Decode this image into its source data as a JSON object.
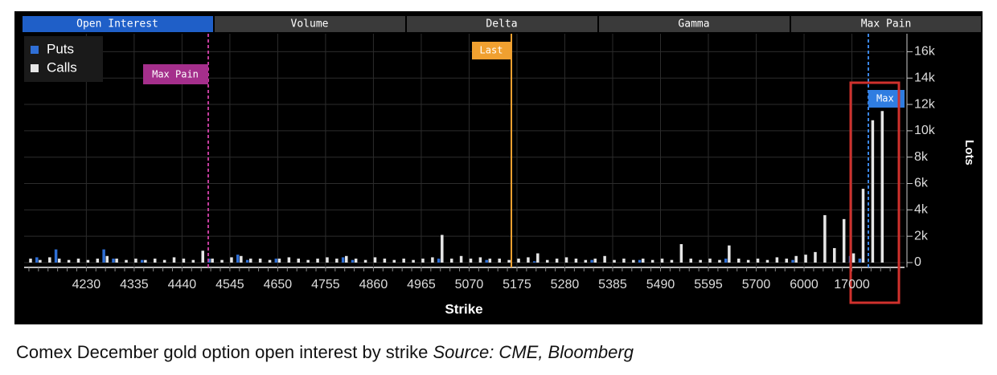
{
  "tabs": [
    "Open Interest",
    "Volume",
    "Delta",
    "Gamma",
    "Max Pain"
  ],
  "caption": "Comex December gold option open interest by strike",
  "source": "Source: CME, Bloomberg",
  "chart_data": {
    "type": "bar",
    "x_label": "Strike",
    "y_label": "Lots",
    "annotations": [
      "Max Pain",
      "Last",
      "Max"
    ],
    "categories": [
      null,
      null,
      null,
      null,
      null,
      null,
      "4230",
      null,
      null,
      null,
      null,
      "4335",
      null,
      null,
      null,
      null,
      "4440",
      null,
      null,
      null,
      null,
      "4545",
      null,
      null,
      null,
      null,
      "4650",
      null,
      null,
      null,
      null,
      "4755",
      null,
      null,
      null,
      null,
      "4860",
      null,
      null,
      null,
      null,
      "4965",
      null,
      null,
      null,
      null,
      "5070",
      null,
      null,
      null,
      null,
      "5175",
      null,
      null,
      null,
      null,
      "5280",
      null,
      null,
      null,
      null,
      "5385",
      null,
      null,
      null,
      null,
      "5490",
      null,
      null,
      null,
      null,
      "5595",
      null,
      null,
      null,
      null,
      "5700",
      null,
      null,
      null,
      null,
      "6000",
      null,
      null,
      null,
      null,
      "17000",
      null,
      null,
      null,
      null,
      null
    ],
    "series": [
      {
        "name": "Puts",
        "color": "#2f6fd6",
        "values": [
          0,
          400,
          0,
          1000,
          0,
          0,
          0,
          0,
          1000,
          300,
          0,
          0,
          200,
          0,
          0,
          0,
          0,
          0,
          0,
          300,
          0,
          0,
          600,
          200,
          0,
          0,
          300,
          0,
          0,
          0,
          0,
          0,
          0,
          400,
          200,
          0,
          0,
          0,
          0,
          0,
          0,
          0,
          0,
          300,
          0,
          0,
          0,
          0,
          200,
          0,
          0,
          0,
          0,
          100,
          0,
          0,
          0,
          0,
          0,
          200,
          0,
          0,
          0,
          0,
          200,
          0,
          0,
          0,
          0,
          0,
          0,
          0,
          0,
          300,
          0,
          0,
          0,
          0,
          0,
          0,
          200,
          0,
          0,
          0,
          0,
          0,
          500,
          300,
          0,
          0,
          0,
          0
        ]
      },
      {
        "name": "Calls",
        "color": "#e6e6e6",
        "values": [
          300,
          200,
          400,
          300,
          200,
          300,
          200,
          300,
          500,
          300,
          200,
          300,
          200,
          300,
          200,
          400,
          300,
          200,
          900,
          300,
          200,
          400,
          500,
          300,
          300,
          200,
          300,
          400,
          300,
          200,
          300,
          400,
          300,
          500,
          300,
          200,
          400,
          300,
          200,
          300,
          200,
          300,
          400,
          2100,
          300,
          500,
          300,
          400,
          300,
          300,
          200,
          300,
          400,
          700,
          200,
          300,
          400,
          300,
          200,
          300,
          500,
          200,
          300,
          200,
          300,
          200,
          300,
          200,
          1400,
          300,
          200,
          300,
          200,
          1300,
          300,
          200,
          300,
          200,
          400,
          300,
          500,
          600,
          800,
          3600,
          1100,
          3300,
          700,
          5600,
          10800,
          11500,
          0,
          0
        ]
      }
    ],
    "ylim": [
      0,
      17000
    ],
    "yticks": [
      0,
      {
        "value": 2000,
        "label": "2k"
      },
      {
        "value": 4000,
        "label": "4k"
      },
      {
        "value": 6000,
        "label": "6k"
      },
      {
        "value": 8000,
        "label": "8k"
      },
      {
        "value": 10000,
        "label": "10k"
      },
      {
        "value": 12000,
        "label": "12k"
      },
      {
        "value": 14000,
        "label": "14k"
      },
      {
        "value": 16000,
        "label": "16k"
      }
    ],
    "grid": true,
    "legend": "upper left"
  }
}
